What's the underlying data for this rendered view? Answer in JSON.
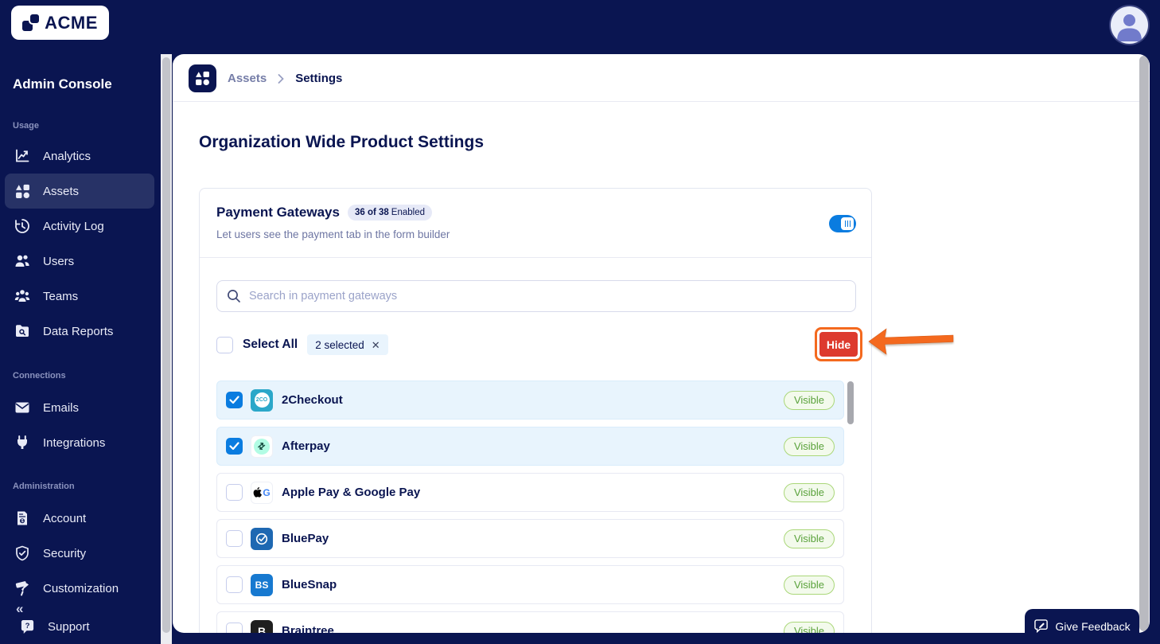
{
  "topbar": {
    "brand": "ACME"
  },
  "sidebar": {
    "title": "Admin Console",
    "sections": [
      {
        "label": "Usage",
        "items": [
          {
            "label": "Analytics",
            "icon": "analytics-icon",
            "active": false
          },
          {
            "label": "Assets",
            "icon": "assets-icon",
            "active": true
          },
          {
            "label": "Activity Log",
            "icon": "activity-log-icon",
            "active": false
          },
          {
            "label": "Users",
            "icon": "users-icon",
            "active": false
          },
          {
            "label": "Teams",
            "icon": "teams-icon",
            "active": false
          },
          {
            "label": "Data Reports",
            "icon": "data-reports-icon",
            "active": false
          }
        ]
      },
      {
        "label": "Connections",
        "items": [
          {
            "label": "Emails",
            "icon": "emails-icon",
            "active": false
          },
          {
            "label": "Integrations",
            "icon": "integrations-icon",
            "active": false
          }
        ]
      },
      {
        "label": "Administration",
        "items": [
          {
            "label": "Account",
            "icon": "account-icon",
            "active": false
          },
          {
            "label": "Security",
            "icon": "security-icon",
            "active": false
          },
          {
            "label": "Customization",
            "icon": "customization-icon",
            "active": false
          }
        ]
      }
    ],
    "collapse_glyph": "«",
    "support": {
      "label": "Support",
      "icon": "support-icon"
    }
  },
  "breadcrumb": {
    "product": "Assets",
    "page": "Settings"
  },
  "page": {
    "title": "Organization Wide Product Settings"
  },
  "card": {
    "title": "Payment Gateways",
    "badge_bold": "36 of 38",
    "badge_rest": "Enabled",
    "subtitle": "Let users see the payment tab in the form builder",
    "toggle_on": true,
    "search_placeholder": "Search in payment gateways",
    "select_all": "Select All",
    "selected_chip": "2 selected",
    "hide_button": "Hide"
  },
  "gateways": [
    {
      "name": "2Checkout",
      "selected": true,
      "status": "Visible",
      "icon": {
        "name": "2checkout-logo-icon",
        "type": "2co",
        "text": "2CO",
        "bg": "#2ba7c9"
      }
    },
    {
      "name": "Afterpay",
      "selected": true,
      "status": "Visible",
      "icon": {
        "name": "afterpay-logo-icon",
        "type": "afterpay",
        "bg": "#ffffff",
        "circle": "#b2fce4"
      }
    },
    {
      "name": "Apple Pay & Google Pay",
      "selected": false,
      "status": "Visible",
      "icon": {
        "name": "apple-google-pay-logo-icon",
        "type": "apple-google",
        "bg": "#ffffff"
      }
    },
    {
      "name": "BluePay",
      "selected": false,
      "status": "Visible",
      "icon": {
        "name": "bluepay-logo-icon",
        "type": "bluepay",
        "bg": "#1e68b2"
      }
    },
    {
      "name": "BlueSnap",
      "selected": false,
      "status": "Visible",
      "icon": {
        "name": "bluesnap-logo-icon",
        "type": "text",
        "text": "BS",
        "bg": "#1779d0",
        "color": "#ffffff",
        "size": 12
      }
    },
    {
      "name": "Braintree",
      "selected": false,
      "status": "Visible",
      "icon": {
        "name": "braintree-logo-icon",
        "type": "text",
        "text": "B",
        "bg": "#1f1f1f",
        "color": "#ffffff",
        "size": 14
      }
    }
  ],
  "feedback": {
    "label": "Give Feedback"
  },
  "colors": {
    "navy": "#0a1551",
    "blue": "#0a7ce0",
    "annotation_orange": "#f4691e",
    "hide_red": "#dd3a2e",
    "visible_green": "#5aa23b",
    "selected_row_bg": "#e8f4fd"
  }
}
